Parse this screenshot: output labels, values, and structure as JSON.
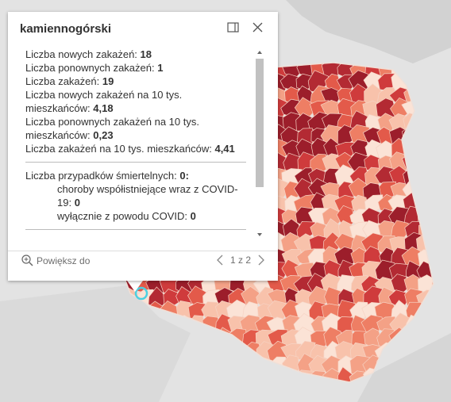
{
  "popup": {
    "title": "kamiennogórski",
    "fields": [
      {
        "label": "Liczba nowych zakażeń:",
        "value": "18"
      },
      {
        "label": "Liczba ponownych zakażeń:",
        "value": "1"
      },
      {
        "label": "Liczba zakażeń:",
        "value": "19"
      },
      {
        "label": "Liczba nowych zakażeń na 10 tys. mieszkańców:",
        "value": "4,18"
      },
      {
        "label": "Liczba ponownych zakażeń na 10 tys. mieszkańców:",
        "value": "0,23"
      },
      {
        "label": "Liczba zakażeń na 10 tys. mieszkańców:",
        "value": "4,41"
      }
    ],
    "deaths": {
      "label": "Liczba przypadków śmiertelnych:",
      "value": "0:",
      "items": [
        {
          "label": "choroby współistniejące wraz z COVID-19:",
          "value": "0"
        },
        {
          "label": "wyłącznie z powodu COVID:",
          "value": "0"
        }
      ]
    },
    "zoom": "Powiększ do",
    "pager": "1 z 2"
  }
}
